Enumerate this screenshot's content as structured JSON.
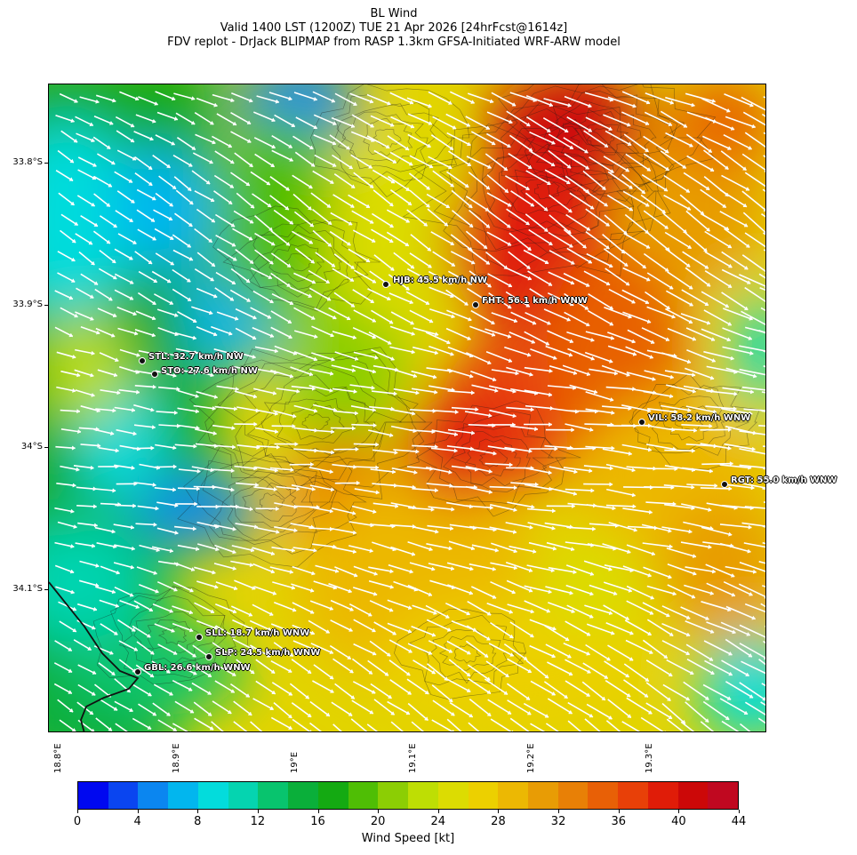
{
  "title": {
    "line1": "BL Wind",
    "line2": "Valid 1400 LST (1200Z) TUE 21 Apr 2026 [24hrFcst@1614z]",
    "line3": "FDV replot - DrJack BLIPMAP from RASP 1.3km GFSA-Initiated WRF-ARW model"
  },
  "axes": {
    "lat_labels": [
      "33.8°S",
      "33.9°S",
      "34°S",
      "34.1°S"
    ],
    "lon_labels": [
      "18.8°E",
      "18.9°E",
      "19°E",
      "19.1°E",
      "19.2°E",
      "19.3°E"
    ]
  },
  "stations": [
    {
      "code": "HJB",
      "label": "HJB: 45.5 km/h NW",
      "speed_kmh": 45.5,
      "direction": "NW"
    },
    {
      "code": "FHT",
      "label": "FHT: 56.1 km/h WNW",
      "speed_kmh": 56.1,
      "direction": "WNW"
    },
    {
      "code": "STL",
      "label": "STL: 32.7 km/h NW",
      "speed_kmh": 32.7,
      "direction": "NW"
    },
    {
      "code": "STO",
      "label": "STO: 27.6 km/h NW",
      "speed_kmh": 27.6,
      "direction": "NW"
    },
    {
      "code": "VIL",
      "label": "VIL: 58.2 km/h WNW",
      "speed_kmh": 58.2,
      "direction": "WNW"
    },
    {
      "code": "RGT",
      "label": "RGT: 55.0 km/h WNW",
      "speed_kmh": 55.0,
      "direction": "WNW"
    },
    {
      "code": "SLL",
      "label": "SLL: 18.7 km/h WNW",
      "speed_kmh": 18.7,
      "direction": "WNW"
    },
    {
      "code": "SLP",
      "label": "SLP: 24.5 km/h WNW",
      "speed_kmh": 24.5,
      "direction": "WNW"
    },
    {
      "code": "GBL",
      "label": "GBL: 26.6 km/h WNW",
      "speed_kmh": 26.6,
      "direction": "WNW"
    }
  ],
  "colorbar": {
    "label": "Wind Speed [kt]",
    "ticks": [
      "0",
      "4",
      "8",
      "12",
      "16",
      "20",
      "24",
      "28",
      "32",
      "36",
      "40",
      "44"
    ],
    "colors": [
      "#0008f0",
      "#0a45f0",
      "#0b86f0",
      "#02b6ee",
      "#03dcdc",
      "#05d4b0",
      "#08c46e",
      "#0aaf3a",
      "#14aa12",
      "#4fbe05",
      "#8cce04",
      "#bede04",
      "#dcdc02",
      "#ecd000",
      "#ecb803",
      "#e89c05",
      "#e88006",
      "#e86006",
      "#e84008",
      "#e01c08",
      "#cc0808",
      "#c00820"
    ]
  }
}
